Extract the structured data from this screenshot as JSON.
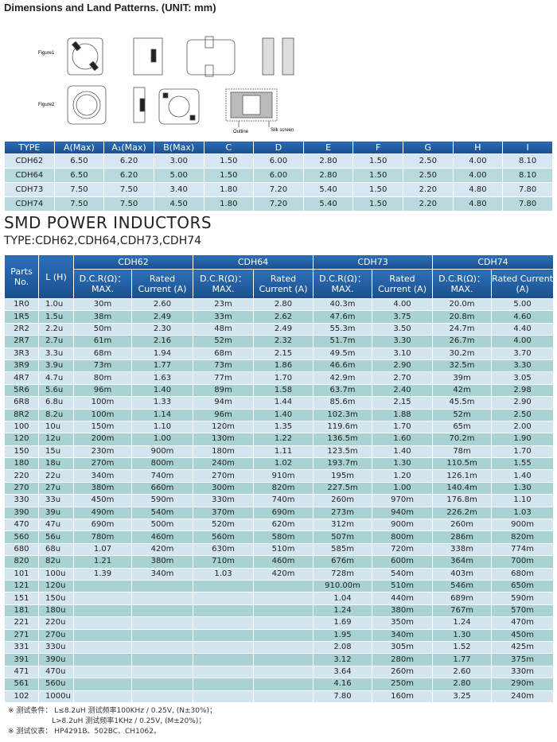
{
  "header": {
    "title": "Dimensions and Land Patterns. (UNIT: mm)"
  },
  "figures": {
    "labels": [
      "Figure1",
      "Figure2"
    ],
    "outline": "Outline",
    "silk": "Silk screen"
  },
  "dimensions": {
    "columns": [
      "TYPE",
      "A(Max)",
      "A₁(Max)",
      "B(Max)",
      "C",
      "D",
      "E",
      "F",
      "G",
      "H",
      "I"
    ],
    "rows": [
      [
        "CDH62",
        "6.50",
        "6.20",
        "3.00",
        "1.50",
        "6.00",
        "2.80",
        "1.50",
        "2.50",
        "4.00",
        "8.10"
      ],
      [
        "CDH64",
        "6.50",
        "6.20",
        "5.00",
        "1.50",
        "6.00",
        "2.80",
        "1.50",
        "2.50",
        "4.00",
        "8.10"
      ],
      [
        "CDH73",
        "7.50",
        "7.50",
        "3.40",
        "1.80",
        "7.20",
        "5.40",
        "1.50",
        "2.20",
        "4.80",
        "7.80"
      ],
      [
        "CDH74",
        "7.50",
        "7.50",
        "4.50",
        "1.80",
        "7.20",
        "5.40",
        "1.50",
        "2.20",
        "4.80",
        "7.80"
      ]
    ]
  },
  "section": {
    "title": "SMD POWER INDUCTORS",
    "subtitle": "TYPE:CDH62,CDH64,CDH73,CDH74"
  },
  "table": {
    "parts_header": "Parts No.",
    "l_header": "L (H)",
    "groups": [
      "CDH62",
      "CDH64",
      "CDH73",
      "CDH74"
    ],
    "sub_headers": [
      "D.C.R(Ω)：MAX.",
      "Rated Current (A)"
    ],
    "rows": [
      [
        "1R0",
        "1.0u",
        "30m",
        "2.60",
        "23m",
        "2.80",
        "40.3m",
        "4.00",
        "20.0m",
        "5.00"
      ],
      [
        "1R5",
        "1.5u",
        "38m",
        "2.49",
        "33m",
        "2.62",
        "47.6m",
        "3.75",
        "20.8m",
        "4.60"
      ],
      [
        "2R2",
        "2.2u",
        "50m",
        "2.30",
        "48m",
        "2.49",
        "55.3m",
        "3.50",
        "24.7m",
        "4.40"
      ],
      [
        "2R7",
        "2.7u",
        "61m",
        "2.16",
        "52m",
        "2.32",
        "51.7m",
        "3.30",
        "26.7m",
        "4.00"
      ],
      [
        "3R3",
        "3.3u",
        "68m",
        "1.94",
        "68m",
        "2.15",
        "49.5m",
        "3.10",
        "30.2m",
        "3.70"
      ],
      [
        "3R9",
        "3.9u",
        "73m",
        "1.77",
        "73m",
        "1.86",
        "46.6m",
        "2.90",
        "32.5m",
        "3.30"
      ],
      [
        "4R7",
        "4.7u",
        "80m",
        "1.63",
        "77m",
        "1.70",
        "42.9m",
        "2.70",
        "39m",
        "3.05"
      ],
      [
        "5R6",
        "5.6u",
        "96m",
        "1.40",
        "89m",
        "1.58",
        "63.7m",
        "2.40",
        "42m",
        "2.98"
      ],
      [
        "6R8",
        "6.8u",
        "100m",
        "1.33",
        "94m",
        "1.44",
        "85.6m",
        "2.15",
        "45.5m",
        "2.90"
      ],
      [
        "8R2",
        "8.2u",
        "100m",
        "1.14",
        "96m",
        "1.40",
        "102.3m",
        "1.88",
        "52m",
        "2.50"
      ],
      [
        "100",
        "10u",
        "150m",
        "1.10",
        "120m",
        "1.35",
        "119.6m",
        "1.70",
        "65m",
        "2.00"
      ],
      [
        "120",
        "12u",
        "200m",
        "1.00",
        "130m",
        "1.22",
        "136.5m",
        "1.60",
        "70.2m",
        "1.90"
      ],
      [
        "150",
        "15u",
        "230m",
        "900m",
        "180m",
        "1.11",
        "123.5m",
        "1.40",
        "78m",
        "1.70"
      ],
      [
        "180",
        "18u",
        "270m",
        "800m",
        "240m",
        "1.02",
        "193.7m",
        "1.30",
        "110.5m",
        "1.55"
      ],
      [
        "220",
        "22u",
        "340m",
        "740m",
        "270m",
        "910m",
        "195m",
        "1.20",
        "126.1m",
        "1.40"
      ],
      [
        "270",
        "27u",
        "380m",
        "660m",
        "300m",
        "820m",
        "227.5m",
        "1.00",
        "140.4m",
        "1.30"
      ],
      [
        "330",
        "33u",
        "450m",
        "590m",
        "330m",
        "740m",
        "260m",
        "970m",
        "176.8m",
        "1.10"
      ],
      [
        "390",
        "39u",
        "490m",
        "540m",
        "370m",
        "690m",
        "273m",
        "940m",
        "226.2m",
        "1.03"
      ],
      [
        "470",
        "47u",
        "690m",
        "500m",
        "520m",
        "620m",
        "312m",
        "900m",
        "260m",
        "900m"
      ],
      [
        "560",
        "56u",
        "780m",
        "460m",
        "560m",
        "580m",
        "507m",
        "800m",
        "286m",
        "820m"
      ],
      [
        "680",
        "68u",
        "1.07",
        "420m",
        "630m",
        "510m",
        "585m",
        "720m",
        "338m",
        "774m"
      ],
      [
        "820",
        "82u",
        "1.21",
        "380m",
        "710m",
        "460m",
        "676m",
        "600m",
        "364m",
        "700m"
      ],
      [
        "101",
        "100u",
        "1.39",
        "340m",
        "1.03",
        "420m",
        "728m",
        "540m",
        "403m",
        "680m"
      ],
      [
        "121",
        "120u",
        null,
        null,
        null,
        null,
        "910.00m",
        "510m",
        "546m",
        "650m"
      ],
      [
        "151",
        "150u",
        null,
        null,
        null,
        null,
        "1.04",
        "440m",
        "689m",
        "590m"
      ],
      [
        "181",
        "180u",
        null,
        null,
        null,
        null,
        "1.24",
        "380m",
        "767m",
        "570m"
      ],
      [
        "221",
        "220u",
        null,
        null,
        null,
        null,
        "1.69",
        "350m",
        "1.24",
        "470m"
      ],
      [
        "271",
        "270u",
        null,
        null,
        null,
        null,
        "1.95",
        "340m",
        "1.30",
        "450m"
      ],
      [
        "331",
        "330u",
        null,
        null,
        null,
        null,
        "2.08",
        "305m",
        "1.52",
        "425m"
      ],
      [
        "391",
        "390u",
        null,
        null,
        null,
        null,
        "3.12",
        "280m",
        "1.77",
        "375m"
      ],
      [
        "471",
        "470u",
        null,
        null,
        null,
        null,
        "3.64",
        "260m",
        "2.60",
        "330m"
      ],
      [
        "561",
        "560u",
        null,
        null,
        null,
        null,
        "4.16",
        "250m",
        "2.80",
        "290m"
      ],
      [
        "102",
        "1000u",
        null,
        null,
        null,
        null,
        "7.80",
        "160m",
        "3.25",
        "240m"
      ]
    ]
  },
  "notes": [
    "※ 测试条件： L≤8.2uH 测试频率100KHz / 0.25V, (N±30%)；",
    "L>8.2uH 测试频率1KHz / 0.25V, (M±20%)；",
    "※ 测试仪表： HP4291B、502BC、CH1062。"
  ]
}
